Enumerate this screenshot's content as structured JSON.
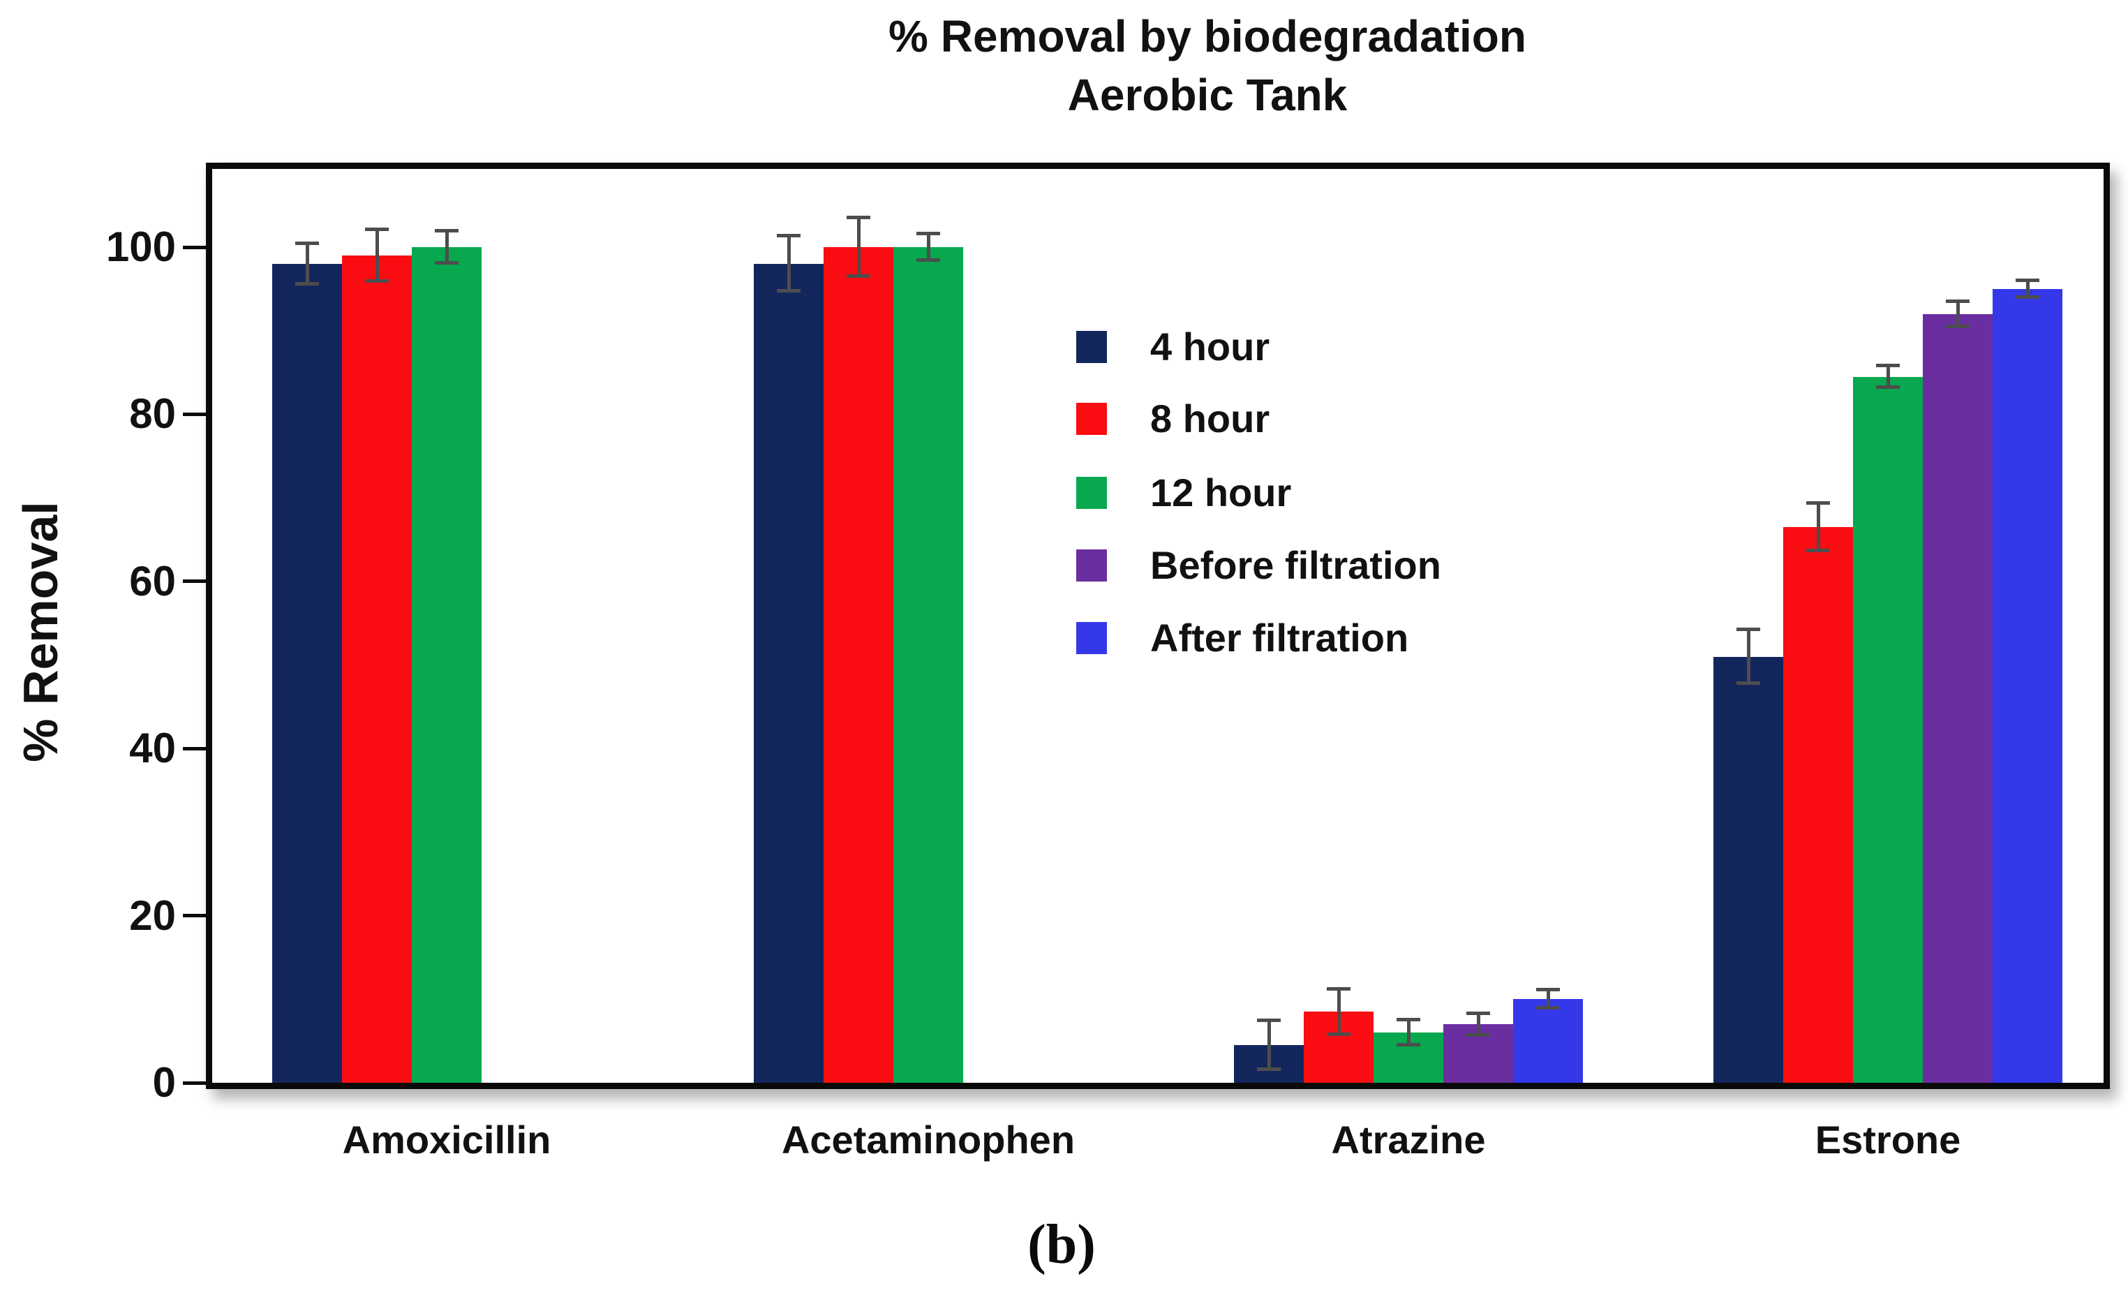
{
  "figure": {
    "title_line1": "% Removal by biodegradation",
    "title_line2": "Aerobic Tank",
    "caption": "(b)"
  },
  "y_axis": {
    "label": "% Removal",
    "ticks": [
      0,
      20,
      40,
      60,
      80,
      100
    ]
  },
  "chart_data": {
    "type": "bar",
    "title": "% Removal by biodegradation",
    "subtitle": "Aerobic Tank",
    "xlabel": "",
    "ylabel": "% Removal",
    "ylim": [
      0,
      109
    ],
    "grid": false,
    "legend_position": "center-right",
    "error_bar_color": "#4d4d4d",
    "categories": [
      "Amoxicillin",
      "Acetaminophen",
      "Atrazine",
      "Estrone"
    ],
    "series": [
      {
        "name": "4 hour",
        "color": "#13265c",
        "values": [
          98,
          98,
          4.5,
          51
        ],
        "errors": [
          2.4,
          3.3,
          2.9,
          3.2
        ]
      },
      {
        "name": "8 hour",
        "color": "#f90d13",
        "values": [
          99,
          100,
          8.5,
          66.5
        ],
        "errors": [
          3.1,
          3.5,
          2.7,
          2.8
        ]
      },
      {
        "name": "12 hour",
        "color": "#07a84e",
        "values": [
          100,
          100,
          6,
          84.5
        ],
        "errors": [
          1.9,
          1.6,
          1.5,
          1.3
        ]
      },
      {
        "name": "Before filtration",
        "color": "#6b2ea0",
        "values": [
          null,
          null,
          7,
          92
        ],
        "errors": [
          null,
          null,
          1.3,
          1.5
        ]
      },
      {
        "name": "After filtration",
        "color": "#3438e8",
        "values": [
          null,
          null,
          10,
          95
        ],
        "errors": [
          null,
          null,
          1.1,
          1.0
        ]
      }
    ]
  }
}
